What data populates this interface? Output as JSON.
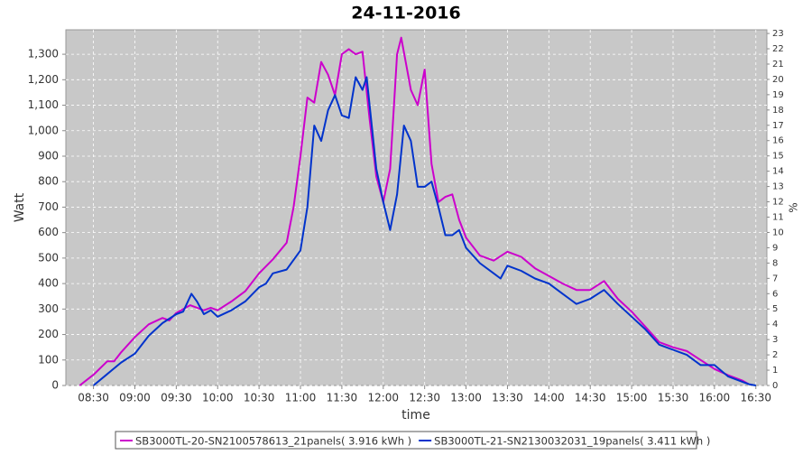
{
  "chart_data": {
    "type": "line",
    "title": "24-11-2016",
    "xlabel": "time",
    "ylabel": "Watt",
    "y2label": "%",
    "xlim": [
      "08:10",
      "16:38"
    ],
    "xticks": [
      "08:30",
      "09:00",
      "09:30",
      "10:00",
      "10:30",
      "11:00",
      "11:30",
      "12:00",
      "12:30",
      "13:00",
      "13:30",
      "14:00",
      "14:30",
      "15:00",
      "15:30",
      "16:00",
      "16:30"
    ],
    "ylim": [
      0,
      1396
    ],
    "yticks": [
      0,
      100,
      200,
      300,
      400,
      500,
      600,
      700,
      800,
      900,
      {
        "value": 1000,
        "label": "1,000"
      },
      {
        "value": 1100,
        "label": "1,100"
      },
      {
        "value": 1200,
        "label": "1,200"
      },
      {
        "value": 1300,
        "label": "1,300"
      }
    ],
    "y2lim": [
      0,
      23.24
    ],
    "y2ticks": [
      0,
      1,
      2,
      3,
      4,
      5,
      6,
      7,
      8,
      9,
      10,
      11,
      12,
      13,
      14,
      15,
      16,
      17,
      18,
      19,
      20,
      21,
      22,
      23
    ],
    "grid": true,
    "legend": "bottom",
    "series": [
      {
        "name": "SB3000TL-20-SN2100578613_21panels( 3.916 kWh )",
        "color": "#cc00cc",
        "x": [
          "08:20",
          "08:30",
          "08:40",
          "08:45",
          "08:50",
          "09:00",
          "09:10",
          "09:20",
          "09:25",
          "09:30",
          "09:40",
          "09:50",
          "09:55",
          "10:00",
          "10:10",
          "10:20",
          "10:30",
          "10:40",
          "10:50",
          "10:55",
          "11:00",
          "11:05",
          "11:10",
          "11:15",
          "11:20",
          "11:25",
          "11:30",
          "11:35",
          "11:40",
          "11:45",
          "11:50",
          "11:55",
          "12:00",
          "12:05",
          "12:10",
          "12:13",
          "12:20",
          "12:25",
          "12:30",
          "12:35",
          "12:40",
          "12:45",
          "12:50",
          "12:55",
          "13:00",
          "13:10",
          "13:20",
          "13:30",
          "13:40",
          "13:50",
          "14:00",
          "14:10",
          "14:20",
          "14:30",
          "14:40",
          "14:50",
          "15:00",
          "15:10",
          "15:20",
          "15:30",
          "15:40",
          "15:50",
          "16:00",
          "16:10",
          "16:20",
          "16:25"
        ],
        "values": [
          0,
          42,
          95,
          95,
          130,
          190,
          240,
          265,
          255,
          285,
          315,
          295,
          305,
          295,
          330,
          370,
          440,
          495,
          560,
          700,
          900,
          1130,
          1110,
          1270,
          1220,
          1140,
          1300,
          1320,
          1300,
          1310,
          1050,
          820,
          720,
          850,
          1300,
          1365,
          1160,
          1100,
          1240,
          870,
          720,
          740,
          750,
          650,
          580,
          510,
          490,
          525,
          505,
          460,
          430,
          400,
          375,
          375,
          410,
          340,
          290,
          230,
          170,
          150,
          135,
          100,
          65,
          40,
          20,
          5
        ]
      },
      {
        "name": "SB3000TL-21-SN2130032031_19panels( 3.411 kWh )",
        "color": "#0033cc",
        "x": [
          "08:30",
          "08:40",
          "08:50",
          "09:00",
          "09:10",
          "09:20",
          "09:30",
          "09:35",
          "09:41",
          "09:45",
          "09:50",
          "09:55",
          "10:00",
          "10:10",
          "10:20",
          "10:30",
          "10:35",
          "10:40",
          "10:50",
          "11:00",
          "11:05",
          "11:10",
          "11:15",
          "11:20",
          "11:25",
          "11:30",
          "11:35",
          "11:40",
          "11:45",
          "11:48",
          "11:55",
          "12:00",
          "12:05",
          "12:10",
          "12:15",
          "12:20",
          "12:25",
          "12:30",
          "12:35",
          "12:40",
          "12:45",
          "12:50",
          "12:55",
          "13:00",
          "13:10",
          "13:20",
          "13:25",
          "13:30",
          "13:40",
          "13:50",
          "14:00",
          "14:10",
          "14:20",
          "14:30",
          "14:40",
          "14:50",
          "15:00",
          "15:10",
          "15:20",
          "15:30",
          "15:40",
          "15:50",
          "16:00",
          "16:10",
          "16:20",
          "16:25",
          "16:30"
        ],
        "values": [
          0,
          45,
          90,
          125,
          195,
          245,
          280,
          290,
          360,
          330,
          280,
          295,
          270,
          295,
          330,
          385,
          400,
          440,
          455,
          530,
          700,
          1020,
          960,
          1080,
          1140,
          1060,
          1050,
          1210,
          1160,
          1210,
          850,
          720,
          610,
          750,
          1020,
          960,
          780,
          780,
          800,
          700,
          590,
          590,
          610,
          540,
          480,
          440,
          420,
          470,
          450,
          420,
          400,
          360,
          320,
          340,
          375,
          320,
          270,
          220,
          160,
          140,
          120,
          80,
          80,
          35,
          15,
          5,
          0
        ]
      }
    ]
  }
}
